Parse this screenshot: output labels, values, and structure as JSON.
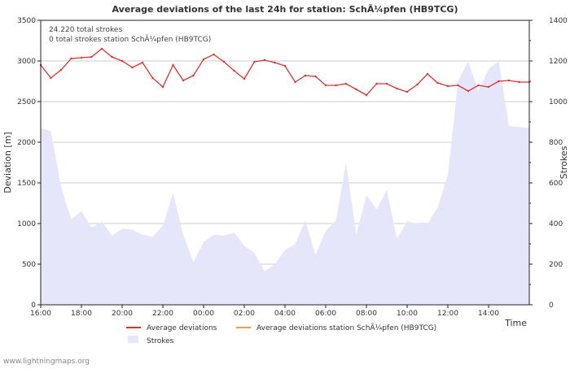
{
  "chart_data": {
    "type": "line",
    "title": "Average deviations of the last 24h for station: SchÃ¼pfen (HB9TCG)",
    "annotations": [
      "24.220 total strokes",
      "0 total strokes station SchÃ¼pfen (HB9TCG)"
    ],
    "xlabel": "Time",
    "ylabel": "Deviation  [m]",
    "y2label": "Strokes",
    "xlim": [
      0,
      24
    ],
    "x_ticks": [
      0,
      2,
      4,
      6,
      8,
      10,
      12,
      14,
      16,
      18,
      20,
      22
    ],
    "x_tick_labels": [
      "16:00",
      "18:00",
      "20:00",
      "22:00",
      "00:00",
      "02:00",
      "04:00",
      "06:00",
      "08:00",
      "10:00",
      "12:00",
      "14:00"
    ],
    "ylim": [
      0,
      3500
    ],
    "y_ticks": [
      0,
      500,
      1000,
      1500,
      2000,
      2500,
      3000,
      3500
    ],
    "y_tick_labels": [
      "0",
      "500",
      "1000",
      "1500",
      "2000",
      "2500",
      "3000",
      "3500"
    ],
    "y2lim": [
      0,
      1400
    ],
    "y2_ticks": [
      0,
      200,
      400,
      600,
      800,
      1000,
      1200,
      1400
    ],
    "y2_tick_labels": [
      "0",
      "200",
      "400",
      "600",
      "800",
      "1000",
      "1200",
      "1400"
    ],
    "grid": true,
    "legend": [
      "Average deviations",
      "Average deviations station SchÃ¼pfen (HB9TCG)",
      "Strokes"
    ],
    "series": [
      {
        "name": "Average deviations",
        "axis": "left",
        "color": "#e03030",
        "x": [
          0,
          0.5,
          1,
          1.5,
          2,
          2.5,
          3,
          3.5,
          4,
          4.5,
          5,
          5.5,
          6,
          6.5,
          7,
          7.5,
          8,
          8.5,
          9,
          9.5,
          10,
          10.5,
          11,
          11.5,
          12,
          12.5,
          13,
          13.5,
          14,
          14.5,
          15,
          15.5,
          16,
          16.5,
          17,
          17.5,
          18,
          18.5,
          19,
          19.5,
          20,
          20.5,
          21,
          21.5,
          22,
          22.5,
          23,
          23.5,
          24
        ],
        "values": [
          2950,
          2790,
          2890,
          3030,
          3040,
          3050,
          3150,
          3050,
          3000,
          2920,
          2980,
          2790,
          2680,
          2950,
          2760,
          2820,
          3020,
          3080,
          2990,
          2880,
          2780,
          2990,
          3010,
          2980,
          2940,
          2740,
          2820,
          2810,
          2700,
          2700,
          2720,
          2650,
          2580,
          2720,
          2720,
          2660,
          2620,
          2710,
          2840,
          2730,
          2690,
          2700,
          2630,
          2700,
          2680,
          2750,
          2760,
          2740,
          2740
        ]
      },
      {
        "name": "Average deviations station SchÃ¼pfen (HB9TCG)",
        "axis": "left",
        "color": "#f0a040",
        "x": [],
        "values": []
      },
      {
        "name": "Strokes",
        "axis": "right",
        "type": "area",
        "color": "#e6e6fa",
        "x": [
          0,
          0.5,
          1,
          1.5,
          2,
          2.5,
          3,
          3.5,
          4,
          4.5,
          5,
          5.5,
          6,
          6.5,
          7,
          7.5,
          8,
          8.5,
          9,
          9.5,
          10,
          10.5,
          11,
          11.5,
          12,
          12.5,
          13,
          13.5,
          14,
          14.5,
          15,
          15.5,
          16,
          16.5,
          17,
          17.5,
          18,
          18.5,
          19,
          19.5,
          20,
          20.5,
          21,
          21.5,
          22,
          22.5,
          23,
          23.5,
          24
        ],
        "values": [
          870,
          855,
          580,
          420,
          460,
          380,
          410,
          340,
          375,
          370,
          345,
          335,
          390,
          550,
          345,
          210,
          310,
          345,
          340,
          355,
          290,
          255,
          165,
          200,
          270,
          300,
          415,
          245,
          365,
          415,
          700,
          345,
          540,
          470,
          565,
          325,
          410,
          400,
          400,
          480,
          640,
          1100,
          1200,
          1050,
          1160,
          1200,
          880,
          875,
          870
        ]
      }
    ]
  },
  "footer": {
    "credit": "www.lightningmaps.org"
  }
}
